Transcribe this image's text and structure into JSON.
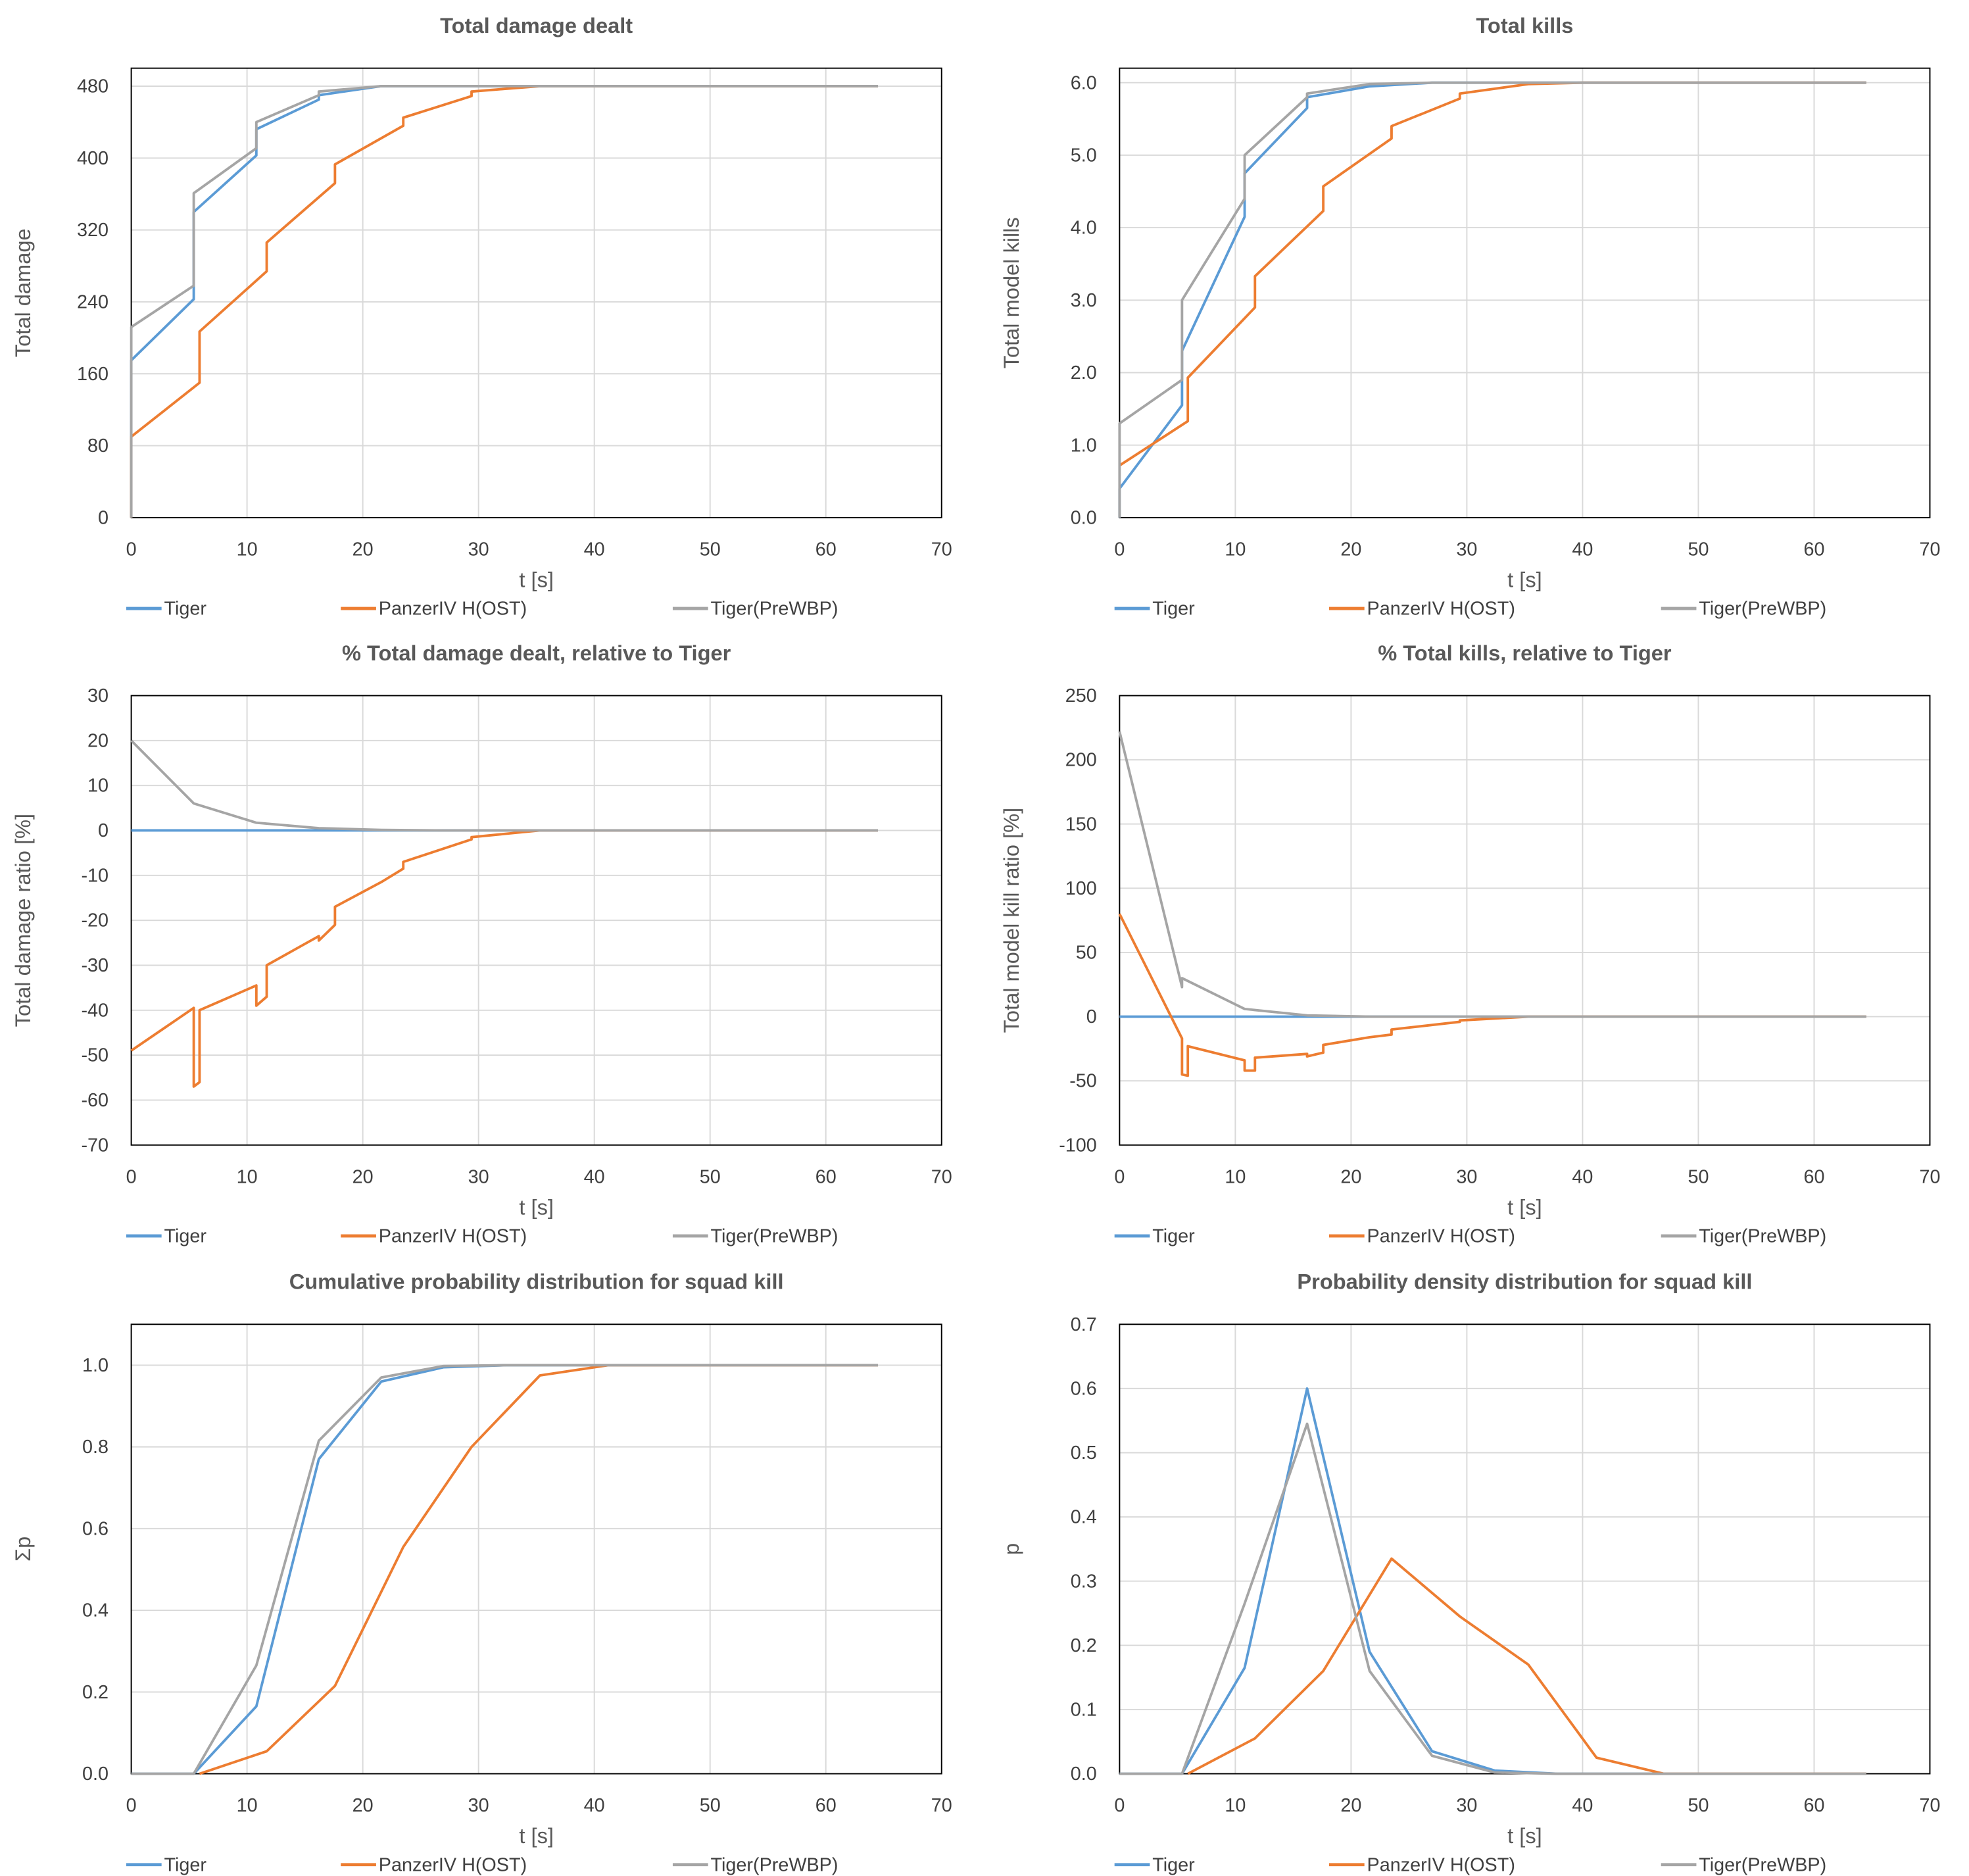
{
  "legend": [
    {
      "name": "Tiger",
      "color": "#5B9BD5"
    },
    {
      "name": "PanzerIV  H(OST)",
      "color": "#ED7D31"
    },
    {
      "name": "Tiger(PreWBP)",
      "color": "#A5A5A5"
    }
  ],
  "chart_data": [
    {
      "type": "line",
      "title": "Total damage dealt",
      "xlabel": "t [s]",
      "ylabel": "Total damage",
      "xlim": [
        0,
        70
      ],
      "xticks": [
        0,
        10,
        20,
        30,
        40,
        50,
        60,
        70
      ],
      "ylim": [
        0,
        500
      ],
      "yticks": [
        0,
        80,
        160,
        240,
        320,
        400,
        480
      ],
      "ydecimals": 0,
      "grid": true,
      "legend": "bottom",
      "series": [
        {
          "name": "Tiger",
          "points": [
            [
              0,
              0
            ],
            [
              0,
              175
            ],
            [
              5.4,
              243
            ],
            [
              5.4,
              340
            ],
            [
              10.8,
              403
            ],
            [
              10.8,
              432
            ],
            [
              16.2,
              465
            ],
            [
              16.2,
              470
            ],
            [
              21.6,
              480
            ],
            [
              64.5,
              480
            ]
          ]
        },
        {
          "name": "PanzerIV  H(OST)",
          "points": [
            [
              0,
              0
            ],
            [
              0,
              90
            ],
            [
              5.9,
              150
            ],
            [
              5.9,
              207
            ],
            [
              11.7,
              274
            ],
            [
              11.7,
              306
            ],
            [
              17.6,
              372
            ],
            [
              17.6,
              393
            ],
            [
              23.5,
              436
            ],
            [
              23.5,
              445
            ],
            [
              29.4,
              469
            ],
            [
              29.4,
              474
            ],
            [
              35.3,
              480
            ],
            [
              64.5,
              480
            ]
          ]
        },
        {
          "name": "Tiger(PreWBP)",
          "points": [
            [
              0,
              0
            ],
            [
              0,
              212
            ],
            [
              5.4,
              258
            ],
            [
              5.4,
              361
            ],
            [
              10.8,
              411
            ],
            [
              10.8,
              440
            ],
            [
              16.2,
              470
            ],
            [
              16.2,
              474
            ],
            [
              21.6,
              480
            ],
            [
              64.5,
              480
            ]
          ]
        }
      ]
    },
    {
      "type": "line",
      "title": "Total kills",
      "xlabel": "t [s]",
      "ylabel": "Total model kills",
      "xlim": [
        0,
        70
      ],
      "xticks": [
        0,
        10,
        20,
        30,
        40,
        50,
        60,
        70
      ],
      "ylim": [
        0,
        6.2
      ],
      "yticks": [
        0,
        1,
        2,
        3,
        4,
        5,
        6
      ],
      "ydecimals": 1,
      "grid": true,
      "legend": "bottom",
      "series": [
        {
          "name": "Tiger",
          "points": [
            [
              0,
              0
            ],
            [
              0,
              0.4
            ],
            [
              5.4,
              1.55
            ],
            [
              5.4,
              2.3
            ],
            [
              10.8,
              4.15
            ],
            [
              10.8,
              4.75
            ],
            [
              16.2,
              5.65
            ],
            [
              16.2,
              5.8
            ],
            [
              21.6,
              5.95
            ],
            [
              27,
              6
            ],
            [
              64.5,
              6
            ]
          ]
        },
        {
          "name": "PanzerIV  H(OST)",
          "points": [
            [
              0,
              0.72
            ],
            [
              5.9,
              1.33
            ],
            [
              5.9,
              1.93
            ],
            [
              11.7,
              2.9
            ],
            [
              11.7,
              3.33
            ],
            [
              17.6,
              4.23
            ],
            [
              17.6,
              4.57
            ],
            [
              23.5,
              5.23
            ],
            [
              23.5,
              5.4
            ],
            [
              29.4,
              5.78
            ],
            [
              29.4,
              5.85
            ],
            [
              35.3,
              5.98
            ],
            [
              40,
              6
            ],
            [
              64.5,
              6
            ]
          ]
        },
        {
          "name": "Tiger(PreWBP)",
          "points": [
            [
              0,
              0
            ],
            [
              0,
              1.3
            ],
            [
              5.4,
              1.9
            ],
            [
              5.4,
              3.0
            ],
            [
              10.8,
              4.4
            ],
            [
              10.8,
              5.0
            ],
            [
              16.2,
              5.8
            ],
            [
              16.2,
              5.85
            ],
            [
              21.6,
              5.98
            ],
            [
              27,
              6
            ],
            [
              64.5,
              6
            ]
          ]
        }
      ]
    },
    {
      "type": "line",
      "title": "% Total damage dealt, relative to Tiger",
      "xlabel": "t [s]",
      "ylabel": "Total damage ratio [%]",
      "xlim": [
        0,
        70
      ],
      "xticks": [
        0,
        10,
        20,
        30,
        40,
        50,
        60,
        70
      ],
      "ylim": [
        -70,
        30
      ],
      "yticks": [
        -70,
        -60,
        -50,
        -40,
        -30,
        -20,
        -10,
        0,
        10,
        20,
        30
      ],
      "ydecimals": 0,
      "grid": true,
      "legend": "bottom",
      "series": [
        {
          "name": "Tiger",
          "points": [
            [
              0,
              0
            ],
            [
              64.5,
              0
            ]
          ]
        },
        {
          "name": "PanzerIV  H(OST)",
          "points": [
            [
              0,
              -49
            ],
            [
              5.4,
              -39.5
            ],
            [
              5.4,
              -57
            ],
            [
              5.9,
              -56
            ],
            [
              5.9,
              -40
            ],
            [
              10.8,
              -34.5
            ],
            [
              10.8,
              -39
            ],
            [
              11.7,
              -37
            ],
            [
              11.7,
              -30
            ],
            [
              16.2,
              -23.5
            ],
            [
              16.2,
              -24.5
            ],
            [
              17.6,
              -21
            ],
            [
              17.6,
              -17
            ],
            [
              21.6,
              -11.5
            ],
            [
              23.5,
              -8.5
            ],
            [
              23.5,
              -7
            ],
            [
              29.4,
              -2
            ],
            [
              29.4,
              -1.5
            ],
            [
              35.3,
              0
            ],
            [
              64.5,
              0
            ]
          ]
        },
        {
          "name": "Tiger(PreWBP)",
          "points": [
            [
              0,
              20
            ],
            [
              5.4,
              6
            ],
            [
              10.8,
              1.7
            ],
            [
              16.2,
              0.5
            ],
            [
              21.6,
              0.1
            ],
            [
              27,
              0
            ],
            [
              64.5,
              0
            ]
          ]
        }
      ]
    },
    {
      "type": "line",
      "title": "% Total kills, relative to Tiger",
      "xlabel": "t [s]",
      "ylabel": "Total model kill ratio [%]",
      "xlim": [
        0,
        70
      ],
      "xticks": [
        0,
        10,
        20,
        30,
        40,
        50,
        60,
        70
      ],
      "ylim": [
        -100,
        250
      ],
      "yticks": [
        -100,
        -50,
        0,
        50,
        100,
        150,
        200,
        250
      ],
      "ydecimals": 0,
      "grid": true,
      "legend": "bottom",
      "series": [
        {
          "name": "Tiger",
          "points": [
            [
              0,
              0
            ],
            [
              64.5,
              0
            ]
          ]
        },
        {
          "name": "PanzerIV  H(OST)",
          "points": [
            [
              0,
              80
            ],
            [
              5.4,
              -17
            ],
            [
              5.4,
              -45
            ],
            [
              5.9,
              -46
            ],
            [
              5.9,
              -23
            ],
            [
              10.8,
              -34
            ],
            [
              10.8,
              -42
            ],
            [
              11.7,
              -42
            ],
            [
              11.7,
              -32
            ],
            [
              16.2,
              -29
            ],
            [
              16.2,
              -31
            ],
            [
              17.6,
              -28
            ],
            [
              17.6,
              -22
            ],
            [
              21.6,
              -16
            ],
            [
              23.5,
              -14
            ],
            [
              23.5,
              -10
            ],
            [
              29.4,
              -4
            ],
            [
              29.4,
              -3
            ],
            [
              35.3,
              0
            ],
            [
              64.5,
              0
            ]
          ]
        },
        {
          "name": "Tiger(PreWBP)",
          "points": [
            [
              0,
              222
            ],
            [
              5.4,
              23
            ],
            [
              5.4,
              30
            ],
            [
              10.8,
              6
            ],
            [
              16.2,
              1
            ],
            [
              21.6,
              0
            ],
            [
              64.5,
              0
            ]
          ]
        }
      ]
    },
    {
      "type": "line",
      "title": "Cumulative probability distribution for squad kill",
      "xlabel": "t [s]",
      "ylabel": "Σp",
      "xlim": [
        0,
        70
      ],
      "xticks": [
        0,
        10,
        20,
        30,
        40,
        50,
        60,
        70
      ],
      "ylim": [
        0,
        1.1
      ],
      "yticks": [
        0,
        0.2,
        0.4,
        0.6,
        0.8,
        1.0
      ],
      "ydecimals": 1,
      "grid": true,
      "legend": "bottom",
      "series": [
        {
          "name": "Tiger",
          "points": [
            [
              0,
              0
            ],
            [
              5.4,
              0
            ],
            [
              10.8,
              0.165
            ],
            [
              16.2,
              0.77
            ],
            [
              21.6,
              0.96
            ],
            [
              27,
              0.995
            ],
            [
              32.4,
              1
            ],
            [
              64.5,
              1
            ]
          ]
        },
        {
          "name": "PanzerIV  H(OST)",
          "points": [
            [
              5.9,
              0
            ],
            [
              11.7,
              0.055
            ],
            [
              17.6,
              0.215
            ],
            [
              23.5,
              0.555
            ],
            [
              29.4,
              0.8
            ],
            [
              35.3,
              0.975
            ],
            [
              41.2,
              1
            ],
            [
              64.5,
              1
            ]
          ]
        },
        {
          "name": "Tiger(PreWBP)",
          "points": [
            [
              0,
              0
            ],
            [
              5.4,
              0
            ],
            [
              10.8,
              0.265
            ],
            [
              16.2,
              0.815
            ],
            [
              21.6,
              0.97
            ],
            [
              27,
              0.998
            ],
            [
              32.4,
              1
            ],
            [
              64.5,
              1
            ]
          ]
        }
      ]
    },
    {
      "type": "line",
      "title": "Probability density distribution for squad kill",
      "xlabel": "t [s]",
      "ylabel": "p",
      "xlim": [
        0,
        70
      ],
      "xticks": [
        0,
        10,
        20,
        30,
        40,
        50,
        60,
        70
      ],
      "ylim": [
        0,
        0.7
      ],
      "yticks": [
        0,
        0.1,
        0.2,
        0.3,
        0.4,
        0.5,
        0.6,
        0.7
      ],
      "ydecimals": 1,
      "grid": true,
      "legend": "bottom",
      "series": [
        {
          "name": "Tiger",
          "points": [
            [
              0,
              0
            ],
            [
              5.4,
              0
            ],
            [
              10.8,
              0.165
            ],
            [
              16.2,
              0.6
            ],
            [
              21.6,
              0.19
            ],
            [
              27,
              0.035
            ],
            [
              32.4,
              0.005
            ],
            [
              37.8,
              0
            ],
            [
              64.5,
              0
            ]
          ]
        },
        {
          "name": "PanzerIV  H(OST)",
          "points": [
            [
              5.9,
              0
            ],
            [
              11.7,
              0.055
            ],
            [
              17.6,
              0.16
            ],
            [
              23.5,
              0.335
            ],
            [
              29.4,
              0.245
            ],
            [
              35.3,
              0.17
            ],
            [
              41.2,
              0.025
            ],
            [
              47,
              0
            ],
            [
              64.5,
              0
            ]
          ]
        },
        {
          "name": "Tiger(PreWBP)",
          "points": [
            [
              0,
              0
            ],
            [
              5.4,
              0
            ],
            [
              10.8,
              0.265
            ],
            [
              16.2,
              0.545
            ],
            [
              21.6,
              0.16
            ],
            [
              27,
              0.028
            ],
            [
              32.4,
              0.002
            ],
            [
              37.8,
              0
            ],
            [
              64.5,
              0
            ]
          ]
        }
      ]
    }
  ]
}
